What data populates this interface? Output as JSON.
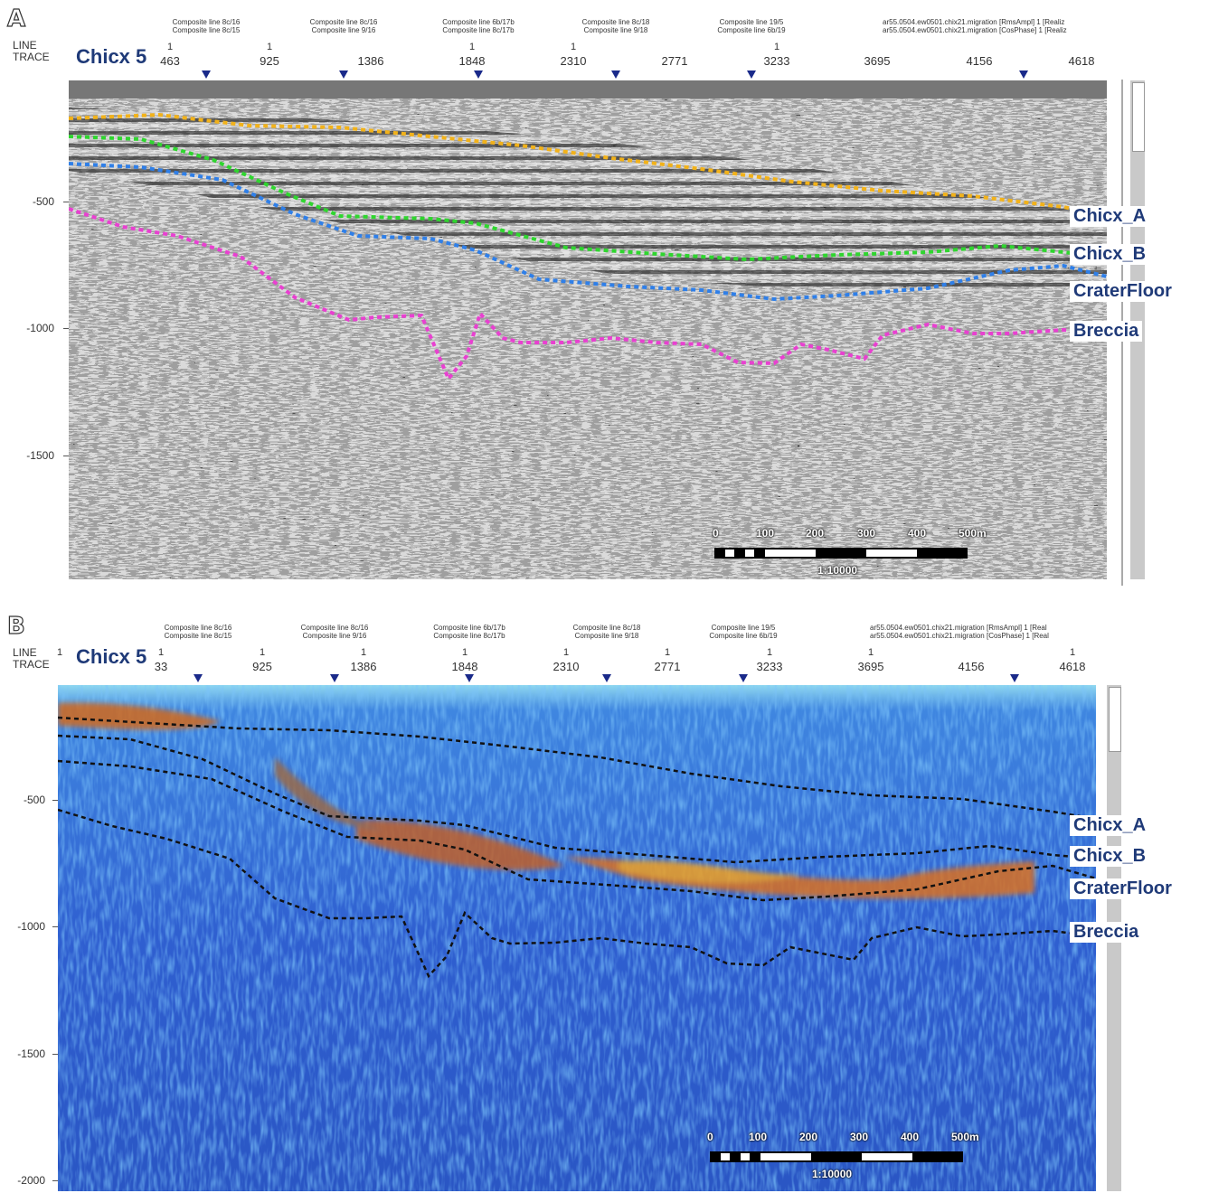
{
  "panels": [
    {
      "label": "A",
      "linetrace": [
        "LINE",
        "TRACE"
      ],
      "well": "Chicx 5",
      "composite": [
        [
          "Composite line 8c/16",
          "Composite line 8c/15"
        ],
        [
          "Composite line 8c/16",
          "Composite line 9/16"
        ],
        [
          "Composite line 6b/17b",
          "Composite line 8c/17b"
        ],
        [
          "Composite line 8c/18",
          "Composite line 9/18"
        ],
        [
          "Composite line 19/5",
          "Composite line 6b/19"
        ]
      ],
      "attr_labels": [
        "ar55.0504.ew0501.chix21.migration [RmsAmpl] 1 [Realiz",
        "ar55.0504.ew0501.chix21.migration [CosPhase] 1 [Realiz"
      ],
      "line_numbers": [
        "1",
        "1",
        "1",
        "1",
        "1"
      ],
      "traces": [
        "463",
        "925",
        "1386",
        "1848",
        "2310",
        "2771",
        "3233",
        "3695",
        "4156",
        "4618"
      ],
      "yticks": [
        "-500",
        "-1000",
        "-1500"
      ],
      "horizons": [
        "Chicx_A",
        "Chicx_B",
        "CraterFloor",
        "Breccia"
      ],
      "scalebar": {
        "labels": [
          "0",
          "100",
          "200",
          "300",
          "400",
          "500m"
        ],
        "ratio": "1:10000"
      }
    },
    {
      "label": "B",
      "linetrace": [
        "LINE",
        "TRACE"
      ],
      "well": "Chicx 5",
      "composite": [
        [
          "Composite line 8c/16",
          "Composite line 8c/15"
        ],
        [
          "Composite line 8c/16",
          "Composite line 9/16"
        ],
        [
          "Composite line 6b/17b",
          "Composite line 8c/17b"
        ],
        [
          "Composite line 8c/18",
          "Composite line 9/18"
        ],
        [
          "Composite line 19/5",
          "Composite line 6b/19"
        ]
      ],
      "attr_labels": [
        "ar55.0504.ew0501.chix21.migration [RmsAmpl] 1 [Real",
        "ar55.0504.ew0501.chix21.migration [CosPhase] 1 [Real"
      ],
      "line_numbers": [
        "1",
        "1",
        "1",
        "1",
        "1",
        "1",
        "1",
        "1",
        "1",
        "1"
      ],
      "traces": [
        "33",
        "925",
        "1386",
        "1848",
        "2310",
        "2771",
        "3233",
        "3695",
        "4156",
        "4618"
      ],
      "yticks": [
        "-500",
        "-1000",
        "-1500",
        "-2000"
      ],
      "horizons": [
        "Chicx_A",
        "Chicx_B",
        "CraterFloor",
        "Breccia"
      ],
      "scalebar": {
        "labels": [
          "0",
          "100",
          "200",
          "300",
          "400",
          "500m"
        ],
        "ratio": "1:10000"
      }
    }
  ],
  "colors": {
    "chicx_a": "#f2b21a",
    "chicx_b": "#2fd62f",
    "crater_floor": "#2f7fe8",
    "breccia": "#e840d0",
    "label_text": "#1f3a78",
    "panel_b_bg": "#2f5fd0"
  }
}
